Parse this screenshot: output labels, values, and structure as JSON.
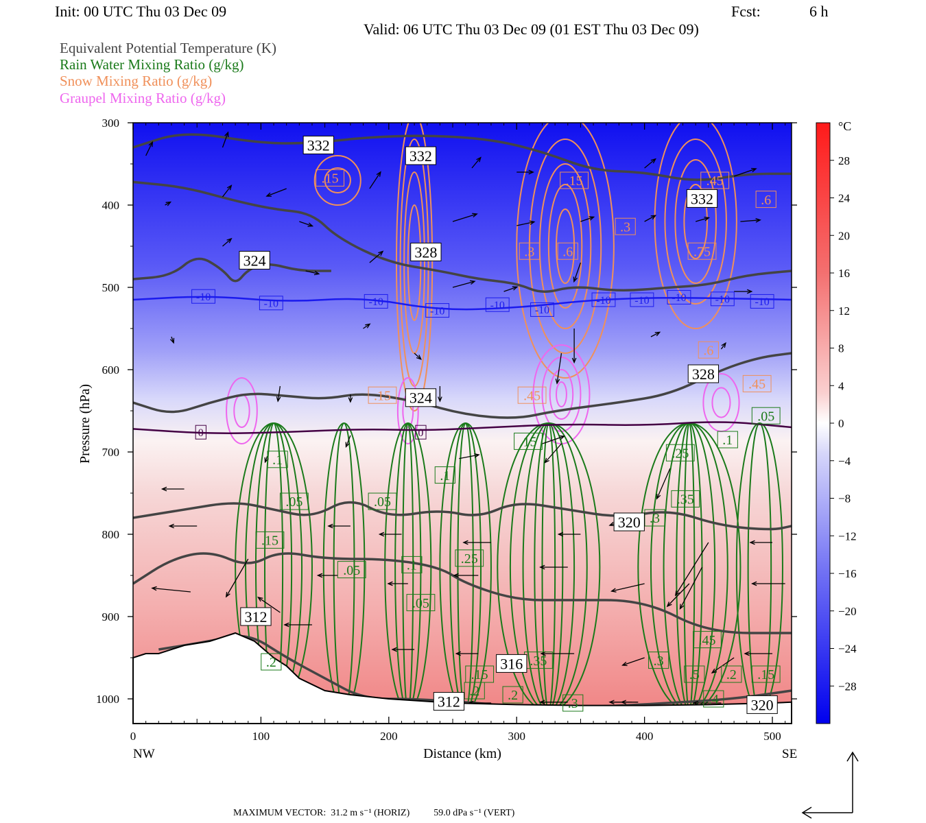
{
  "header": {
    "init": "Init: 00 UTC Thu 03 Dec 09",
    "fcst_label": "Fcst:",
    "fcst_value": "6 h",
    "valid": "Valid: 06 UTC Thu 03 Dec 09 (01 EST Thu 03 Dec 09)"
  },
  "legend": [
    {
      "label": "Equivalent Potential Temperature (K)",
      "color": "#444444"
    },
    {
      "label": "Rain Water Mixing Ratio (g/kg)",
      "color": "#1a7a1a"
    },
    {
      "label": "Snow Mixing Ratio (g/kg)",
      "color": "#f0905a"
    },
    {
      "label": "Graupel Mixing Ratio (g/kg)",
      "color": "#ee66ee"
    }
  ],
  "chart_data": {
    "type": "cross-section",
    "xlabel": "Distance (km)",
    "ylabel": "Pressure (hPa)",
    "xlim": [
      0,
      515
    ],
    "ylim": [
      1030,
      300
    ],
    "x_ticks": [
      0,
      100,
      200,
      300,
      400,
      500
    ],
    "y_ticks": [
      300,
      400,
      500,
      600,
      700,
      800,
      900,
      1000
    ],
    "x_ends": {
      "left": "NW",
      "right": "SE"
    },
    "colorbar": {
      "unit": "°C",
      "tick_labels": [
        "28",
        "24",
        "20",
        "16",
        "12",
        "8",
        "4",
        "0",
        "−4",
        "−8",
        "−12",
        "−16",
        "−20",
        "−24",
        "−28"
      ],
      "range": [
        32,
        -32
      ]
    },
    "temperature_isotherms": [
      {
        "value": -10,
        "label": "-10",
        "color": "#1a1aee",
        "points": [
          [
            0,
            515
          ],
          [
            60,
            510
          ],
          [
            120,
            518
          ],
          [
            180,
            512
          ],
          [
            240,
            528
          ],
          [
            300,
            525
          ],
          [
            360,
            515
          ],
          [
            420,
            512
          ],
          [
            515,
            515
          ]
        ],
        "labels_at": [
          [
            55,
            511
          ],
          [
            108,
            519
          ],
          [
            190,
            517
          ],
          [
            238,
            528
          ],
          [
            285,
            521
          ],
          [
            320,
            527
          ],
          [
            368,
            515
          ],
          [
            398,
            515
          ],
          [
            427,
            512
          ],
          [
            461,
            514
          ],
          [
            492,
            517
          ]
        ]
      },
      {
        "value": 0,
        "label": "0",
        "color": "#440044",
        "points": [
          [
            0,
            672
          ],
          [
            60,
            678
          ],
          [
            120,
            676
          ],
          [
            180,
            672
          ],
          [
            230,
            674
          ],
          [
            280,
            670
          ],
          [
            340,
            666
          ],
          [
            400,
            668
          ],
          [
            460,
            662
          ],
          [
            515,
            670
          ]
        ],
        "labels_at": [
          [
            53,
            676
          ],
          [
            225,
            676
          ]
        ]
      }
    ],
    "theta_e_contours": [
      {
        "value": 332,
        "points": [
          [
            0,
            372
          ],
          [
            40,
            378
          ],
          [
            80,
            395
          ],
          [
            110,
            405
          ],
          [
            140,
            410
          ],
          [
            160,
            440
          ],
          [
            200,
            470
          ],
          [
            240,
            480
          ],
          [
            270,
            490
          ],
          [
            300,
            495
          ],
          [
            320,
            508
          ],
          [
            345,
            498
          ],
          [
            380,
            505
          ],
          [
            420,
            500
          ],
          [
            450,
            497
          ],
          [
            480,
            485
          ],
          [
            515,
            480
          ]
        ]
      },
      {
        "value": 332,
        "points": [
          [
            0,
            330
          ],
          [
            40,
            310
          ],
          [
            100,
            325
          ],
          [
            140,
            325
          ],
          [
            180,
            318
          ],
          [
            230,
            315
          ],
          [
            280,
            320
          ],
          [
            320,
            335
          ],
          [
            360,
            358
          ],
          [
            400,
            360
          ],
          [
            440,
            372
          ],
          [
            480,
            362
          ],
          [
            515,
            362
          ]
        ]
      },
      {
        "value": 324,
        "points": [
          [
            0,
            490
          ],
          [
            30,
            486
          ],
          [
            50,
            460
          ],
          [
            70,
            478
          ],
          [
            80,
            497
          ],
          [
            90,
            478
          ],
          [
            105,
            470
          ],
          [
            130,
            480
          ],
          [
            155,
            480
          ]
        ]
      },
      {
        "value": 324,
        "points": [
          [
            0,
            640
          ],
          [
            30,
            655
          ],
          [
            60,
            640
          ],
          [
            90,
            628
          ],
          [
            120,
            632
          ],
          [
            150,
            636
          ],
          [
            180,
            628
          ],
          [
            220,
            638
          ],
          [
            260,
            655
          ],
          [
            300,
            660
          ],
          [
            330,
            650
          ],
          [
            380,
            640
          ],
          [
            420,
            630
          ],
          [
            460,
            600
          ],
          [
            490,
            585
          ],
          [
            515,
            580
          ]
        ]
      },
      {
        "value": 320,
        "points": [
          [
            0,
            780
          ],
          [
            40,
            770
          ],
          [
            80,
            760
          ],
          [
            110,
            770
          ],
          [
            140,
            780
          ],
          [
            170,
            755
          ],
          [
            200,
            780
          ],
          [
            240,
            770
          ],
          [
            270,
            780
          ],
          [
            300,
            760
          ],
          [
            340,
            770
          ],
          [
            380,
            780
          ],
          [
            420,
            770
          ],
          [
            460,
            790
          ],
          [
            500,
            795
          ],
          [
            515,
            790
          ]
        ]
      },
      {
        "value": 316,
        "points": [
          [
            0,
            860
          ],
          [
            30,
            830
          ],
          [
            60,
            820
          ],
          [
            90,
            840
          ],
          [
            115,
            820
          ],
          [
            150,
            830
          ],
          [
            200,
            830
          ],
          [
            240,
            840
          ],
          [
            260,
            860
          ],
          [
            300,
            880
          ],
          [
            340,
            880
          ],
          [
            400,
            880
          ],
          [
            450,
            920
          ],
          [
            515,
            920
          ]
        ]
      },
      {
        "value": 312,
        "points": [
          [
            20,
            940
          ],
          [
            60,
            930
          ],
          [
            90,
            920
          ],
          [
            120,
            950
          ],
          [
            150,
            975
          ],
          [
            180,
            1000
          ],
          [
            220,
            1000
          ],
          [
            270,
            1005
          ],
          [
            300,
            1010
          ],
          [
            360,
            1010
          ],
          [
            420,
            1005
          ],
          [
            470,
            1000
          ],
          [
            515,
            990
          ]
        ]
      }
    ],
    "theta_e_labels": [
      {
        "text": "332",
        "x": 145,
        "p": 327
      },
      {
        "text": "332",
        "x": 225,
        "p": 340
      },
      {
        "text": "332",
        "x": 445,
        "p": 392
      },
      {
        "text": "328",
        "x": 229,
        "p": 457
      },
      {
        "text": "324",
        "x": 95,
        "p": 467
      },
      {
        "text": "324",
        "x": 225,
        "p": 634
      },
      {
        "text": "328",
        "x": 446,
        "p": 605
      },
      {
        "text": "320",
        "x": 388,
        "p": 785
      },
      {
        "text": "316",
        "x": 296,
        "p": 957
      },
      {
        "text": "312",
        "x": 96,
        "p": 900
      },
      {
        "text": "312",
        "x": 247,
        "p": 1003
      },
      {
        "text": "320",
        "x": 492,
        "p": 1007
      }
    ],
    "snow_labels": [
      {
        "text": ".15",
        "x": 154,
        "p": 367
      },
      {
        "text": ".15",
        "x": 345,
        "p": 370
      },
      {
        "text": ".45",
        "x": 455,
        "p": 370
      },
      {
        "text": ".6",
        "x": 495,
        "p": 393
      },
      {
        "text": ".3",
        "x": 385,
        "p": 426
      },
      {
        "text": ".3",
        "x": 310,
        "p": 456
      },
      {
        "text": ".6",
        "x": 340,
        "p": 456
      },
      {
        "text": ".75",
        "x": 445,
        "p": 456
      },
      {
        "text": ".6",
        "x": 450,
        "p": 576
      },
      {
        "text": ".45",
        "x": 488,
        "p": 617
      },
      {
        "text": ".15",
        "x": 195,
        "p": 631
      },
      {
        "text": ".45",
        "x": 312,
        "p": 631
      }
    ],
    "rain_labels": [
      {
        "text": ".1",
        "x": 113,
        "p": 709
      },
      {
        "text": ".05",
        "x": 126,
        "p": 760
      },
      {
        "text": ".05",
        "x": 195,
        "p": 760
      },
      {
        "text": ".15",
        "x": 107,
        "p": 807
      },
      {
        "text": ".05",
        "x": 171,
        "p": 843
      },
      {
        "text": ".1",
        "x": 218,
        "p": 837
      },
      {
        "text": ".05",
        "x": 225,
        "p": 883
      },
      {
        "text": ".1",
        "x": 244,
        "p": 728
      },
      {
        "text": ".25",
        "x": 263,
        "p": 829
      },
      {
        "text": ".15",
        "x": 309,
        "p": 687
      },
      {
        "text": ".25",
        "x": 428,
        "p": 701
      },
      {
        "text": ".35",
        "x": 432,
        "p": 757
      },
      {
        "text": ".3",
        "x": 408,
        "p": 780
      },
      {
        "text": ".45",
        "x": 449,
        "p": 928
      },
      {
        "text": ".3",
        "x": 411,
        "p": 953
      },
      {
        "text": ".5",
        "x": 439,
        "p": 970
      },
      {
        "text": ".2",
        "x": 468,
        "p": 970
      },
      {
        "text": ".15",
        "x": 495,
        "p": 970
      },
      {
        "text": ".2",
        "x": 108,
        "p": 955
      },
      {
        "text": ".15",
        "x": 271,
        "p": 970
      },
      {
        "text": ".2",
        "x": 267,
        "p": 990
      },
      {
        "text": ".2",
        "x": 297,
        "p": 995
      },
      {
        "text": ".35",
        "x": 317,
        "p": 953
      },
      {
        "text": ".3",
        "x": 344,
        "p": 1005
      },
      {
        "text": ".4",
        "x": 454,
        "p": 1000
      },
      {
        "text": ".05",
        "x": 495,
        "p": 656
      },
      {
        "text": ".1",
        "x": 465,
        "p": 685
      }
    ]
  },
  "footer": {
    "max_vector": "MAXIMUM VECTOR:  31.2 m s⁻¹ (HORIZ)          59.0 dPa s⁻¹ (VERT)"
  }
}
